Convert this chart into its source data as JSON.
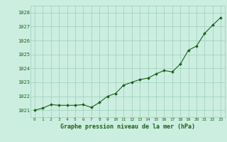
{
  "x": [
    0,
    1,
    2,
    3,
    4,
    5,
    6,
    7,
    8,
    9,
    10,
    11,
    12,
    13,
    14,
    15,
    16,
    17,
    18,
    19,
    20,
    21,
    22,
    23
  ],
  "y": [
    1021.0,
    1021.15,
    1021.4,
    1021.35,
    1021.35,
    1021.35,
    1021.4,
    1021.2,
    1021.55,
    1022.0,
    1022.2,
    1022.8,
    1023.0,
    1023.2,
    1023.3,
    1023.6,
    1023.85,
    1023.75,
    1024.3,
    1025.3,
    1025.6,
    1026.5,
    1027.1,
    1027.65
  ],
  "line_color": "#1a6018",
  "marker_color": "#1a6018",
  "bg_color": "#cceee0",
  "grid_color": "#99ccb8",
  "xlabel": "Graphe pression niveau de la mer (hPa)",
  "xlabel_color": "#1a6018",
  "ylabel_ticks": [
    1021,
    1022,
    1023,
    1024,
    1025,
    1026,
    1027,
    1028
  ],
  "ylim": [
    1020.5,
    1028.5
  ],
  "xlim": [
    -0.5,
    23.5
  ],
  "xticks": [
    0,
    1,
    2,
    3,
    4,
    5,
    6,
    7,
    8,
    9,
    10,
    11,
    12,
    13,
    14,
    15,
    16,
    17,
    18,
    19,
    20,
    21,
    22,
    23
  ]
}
